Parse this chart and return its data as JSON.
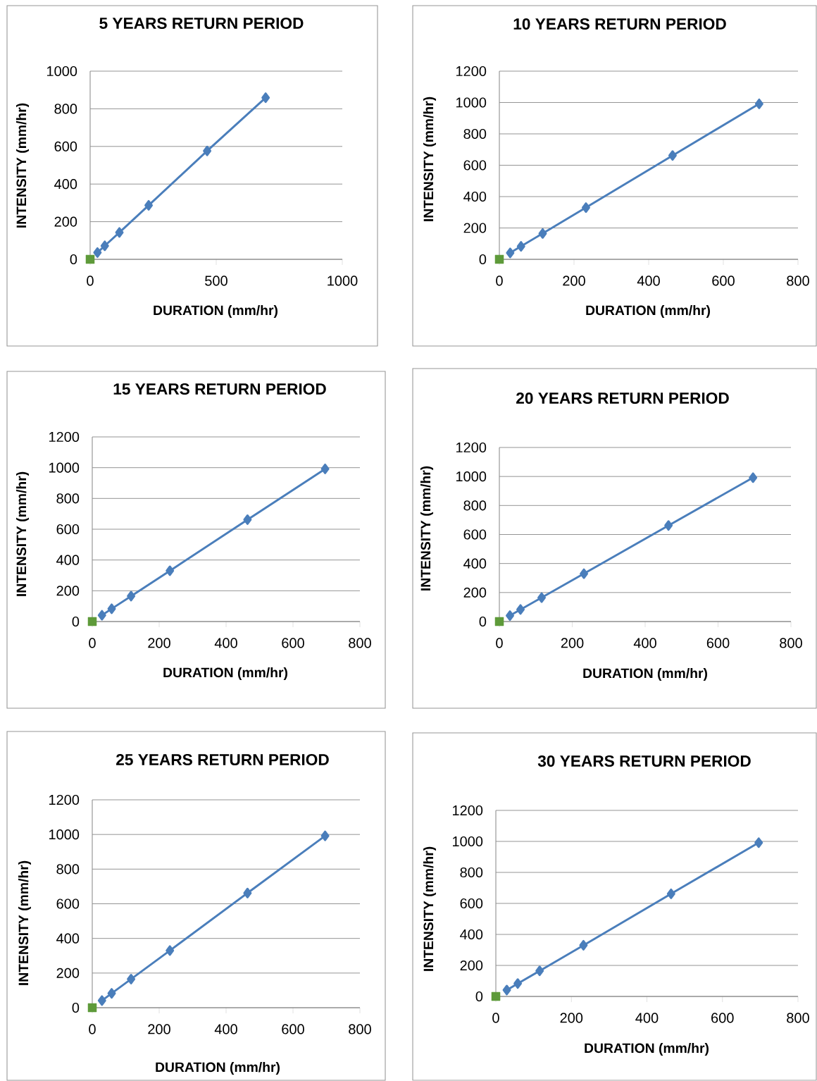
{
  "chart_data": [
    {
      "type": "line",
      "title": "5 YEARS RETURN PERIOD",
      "xlabel": "DURATION (mm/hr)",
      "ylabel": "INTENSITY (mm/hr)",
      "xlim": [
        0,
        1000
      ],
      "xticks": [
        0,
        500,
        1000
      ],
      "ylim": [
        0,
        1000
      ],
      "yticks": [
        0,
        200,
        400,
        600,
        800,
        1000
      ],
      "grid": "y",
      "series": [
        {
          "color": "#4a7ebb",
          "marker": "diamond",
          "x": [
            29,
            58,
            116,
            232,
            464,
            696
          ],
          "values": [
            36,
            72,
            143,
            287,
            576,
            859
          ]
        },
        {
          "type": "scatter",
          "color": "#5e9a3a",
          "marker": "square",
          "x": [
            0
          ],
          "values": [
            0
          ]
        }
      ]
    },
    {
      "type": "line",
      "title": "10 YEARS RETURN PERIOD",
      "xlabel": "DURATION (mm/hr)",
      "ylabel": "INTENSITY (mm/hr)",
      "xlim": [
        0,
        800
      ],
      "xticks": [
        0,
        200,
        400,
        600,
        800
      ],
      "ylim": [
        0,
        1200
      ],
      "yticks": [
        0,
        200,
        400,
        600,
        800,
        1000,
        1200
      ],
      "grid": "y",
      "series": [
        {
          "color": "#4a7ebb",
          "marker": "diamond",
          "x": [
            29,
            58,
            116,
            232,
            464,
            696
          ],
          "values": [
            41,
            83,
            165,
            330,
            662,
            992
          ]
        },
        {
          "type": "scatter",
          "color": "#5e9a3a",
          "marker": "square",
          "x": [
            0
          ],
          "values": [
            0
          ]
        }
      ]
    },
    {
      "type": "line",
      "title": "15 YEARS RETURN PERIOD",
      "xlabel": "DURATION (mm/hr)",
      "ylabel": "INTENSITY (mm/hr)",
      "xlim": [
        0,
        800
      ],
      "xticks": [
        0,
        200,
        400,
        600,
        800
      ],
      "ylim": [
        0,
        1200
      ],
      "yticks": [
        0,
        200,
        400,
        600,
        800,
        1000,
        1200
      ],
      "grid": "y",
      "series": [
        {
          "color": "#4a7ebb",
          "marker": "diamond",
          "x": [
            29,
            58,
            116,
            232,
            464,
            696
          ],
          "values": [
            41,
            83,
            165,
            330,
            662,
            992
          ]
        },
        {
          "type": "scatter",
          "color": "#5e9a3a",
          "marker": "square",
          "x": [
            0
          ],
          "values": [
            0
          ]
        }
      ]
    },
    {
      "type": "line",
      "title": "20 YEARS RETURN PERIOD",
      "xlabel": "DURATION (mm/hr)",
      "ylabel": "INTENSITY (mm/hr)",
      "xlim": [
        0,
        800
      ],
      "xticks": [
        0,
        200,
        400,
        600,
        800
      ],
      "ylim": [
        0,
        1200
      ],
      "yticks": [
        0,
        200,
        400,
        600,
        800,
        1000,
        1200
      ],
      "grid": "y",
      "series": [
        {
          "color": "#4a7ebb",
          "marker": "diamond",
          "x": [
            29,
            58,
            116,
            232,
            464,
            696
          ],
          "values": [
            41,
            83,
            165,
            330,
            662,
            992
          ]
        },
        {
          "type": "scatter",
          "color": "#5e9a3a",
          "marker": "square",
          "x": [
            0
          ],
          "values": [
            0
          ]
        }
      ]
    },
    {
      "type": "line",
      "title": "25 YEARS RETURN PERIOD",
      "xlabel": "DURATION (mm/hr)",
      "ylabel": "INTENSITY (mm/hr)",
      "xlim": [
        0,
        800
      ],
      "xticks": [
        0,
        200,
        400,
        600,
        800
      ],
      "ylim": [
        0,
        1200
      ],
      "yticks": [
        0,
        200,
        400,
        600,
        800,
        1000,
        1200
      ],
      "grid": "y",
      "series": [
        {
          "color": "#4a7ebb",
          "marker": "diamond",
          "x": [
            29,
            58,
            116,
            232,
            464,
            696
          ],
          "values": [
            41,
            83,
            165,
            330,
            662,
            992
          ]
        },
        {
          "type": "scatter",
          "color": "#5e9a3a",
          "marker": "square",
          "x": [
            0
          ],
          "values": [
            0
          ]
        }
      ]
    },
    {
      "type": "line",
      "title": "30 YEARS RETURN PERIOD",
      "xlabel": "DURATION (mm/hr)",
      "ylabel": "INTENSITY (mm/hr)",
      "xlim": [
        0,
        800
      ],
      "xticks": [
        0,
        200,
        400,
        600,
        800
      ],
      "ylim": [
        0,
        1200
      ],
      "yticks": [
        0,
        200,
        400,
        600,
        800,
        1000,
        1200
      ],
      "grid": "y",
      "series": [
        {
          "color": "#4a7ebb",
          "marker": "diamond",
          "x": [
            29,
            58,
            116,
            232,
            464,
            696
          ],
          "values": [
            41,
            83,
            165,
            330,
            662,
            992
          ]
        },
        {
          "type": "scatter",
          "color": "#5e9a3a",
          "marker": "square",
          "x": [
            0
          ],
          "values": [
            0
          ]
        }
      ]
    }
  ]
}
